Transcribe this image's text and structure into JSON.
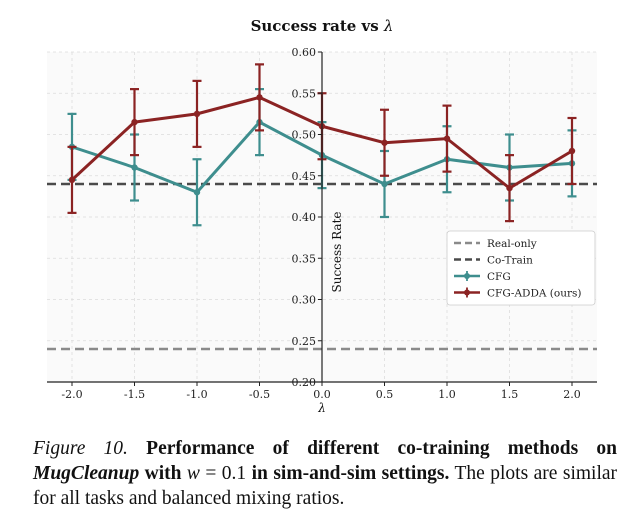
{
  "chart_data": {
    "type": "line",
    "title": "Success rate vs λ",
    "title_prefix": "Success rate vs ",
    "title_symbol": "λ",
    "xlabel": "λ",
    "ylabel": "Success Rate",
    "xlim": [
      -2.2,
      2.2
    ],
    "ylim": [
      0.2,
      0.6
    ],
    "x_ticks": [
      -2.0,
      -1.5,
      -1.0,
      -0.5,
      0.0,
      0.5,
      1.0,
      1.5,
      2.0
    ],
    "x_tick_labels": [
      "-2.0",
      "-1.5",
      "-1.0",
      "-0.5",
      "0.0",
      "0.5",
      "1.0",
      "1.5",
      "2.0"
    ],
    "y_ticks": [
      0.2,
      0.25,
      0.3,
      0.35,
      0.4,
      0.45,
      0.5,
      0.55,
      0.6
    ],
    "y_tick_labels": [
      "0.20",
      "0.25",
      "0.30",
      "0.35",
      "0.40",
      "0.45",
      "0.50",
      "0.55",
      "0.60"
    ],
    "grid": true,
    "legend_position": "center-right",
    "reference_lines": [
      {
        "name": "Real-only",
        "value": 0.24,
        "color": "#8a8a8a",
        "style": "dashed"
      },
      {
        "name": "Co-Train",
        "value": 0.44,
        "color": "#4a4a4a",
        "style": "dashed"
      }
    ],
    "series": [
      {
        "name": "CFG",
        "color": "#3e8e8e",
        "x": [
          -2.0,
          -1.5,
          -1.0,
          -0.5,
          0.0,
          0.5,
          1.0,
          1.5,
          2.0
        ],
        "values": [
          0.485,
          0.46,
          0.43,
          0.515,
          0.475,
          0.44,
          0.47,
          0.46,
          0.465
        ],
        "errors": [
          0.04,
          0.04,
          0.04,
          0.04,
          0.04,
          0.04,
          0.04,
          0.04,
          0.04
        ]
      },
      {
        "name": "CFG-ADDA (ours)",
        "color": "#8b2323",
        "x": [
          -2.0,
          -1.5,
          -1.0,
          -0.5,
          0.0,
          0.5,
          1.0,
          1.5,
          2.0
        ],
        "values": [
          0.445,
          0.515,
          0.525,
          0.545,
          0.51,
          0.49,
          0.495,
          0.435,
          0.48
        ],
        "errors": [
          0.04,
          0.04,
          0.04,
          0.04,
          0.04,
          0.04,
          0.04,
          0.04,
          0.04
        ]
      }
    ]
  },
  "caption": {
    "label": "Figure 10.",
    "bold_1": "Performance of different co-training methods on",
    "bold_italic": "MugCleanup",
    "bold_2": "with",
    "math_var": "w",
    "math_eq": " = 0.1",
    "bold_3": "in sim-and-sim settings.",
    "plain": "The plots are similar for all tasks and balanced mixing ratios."
  }
}
